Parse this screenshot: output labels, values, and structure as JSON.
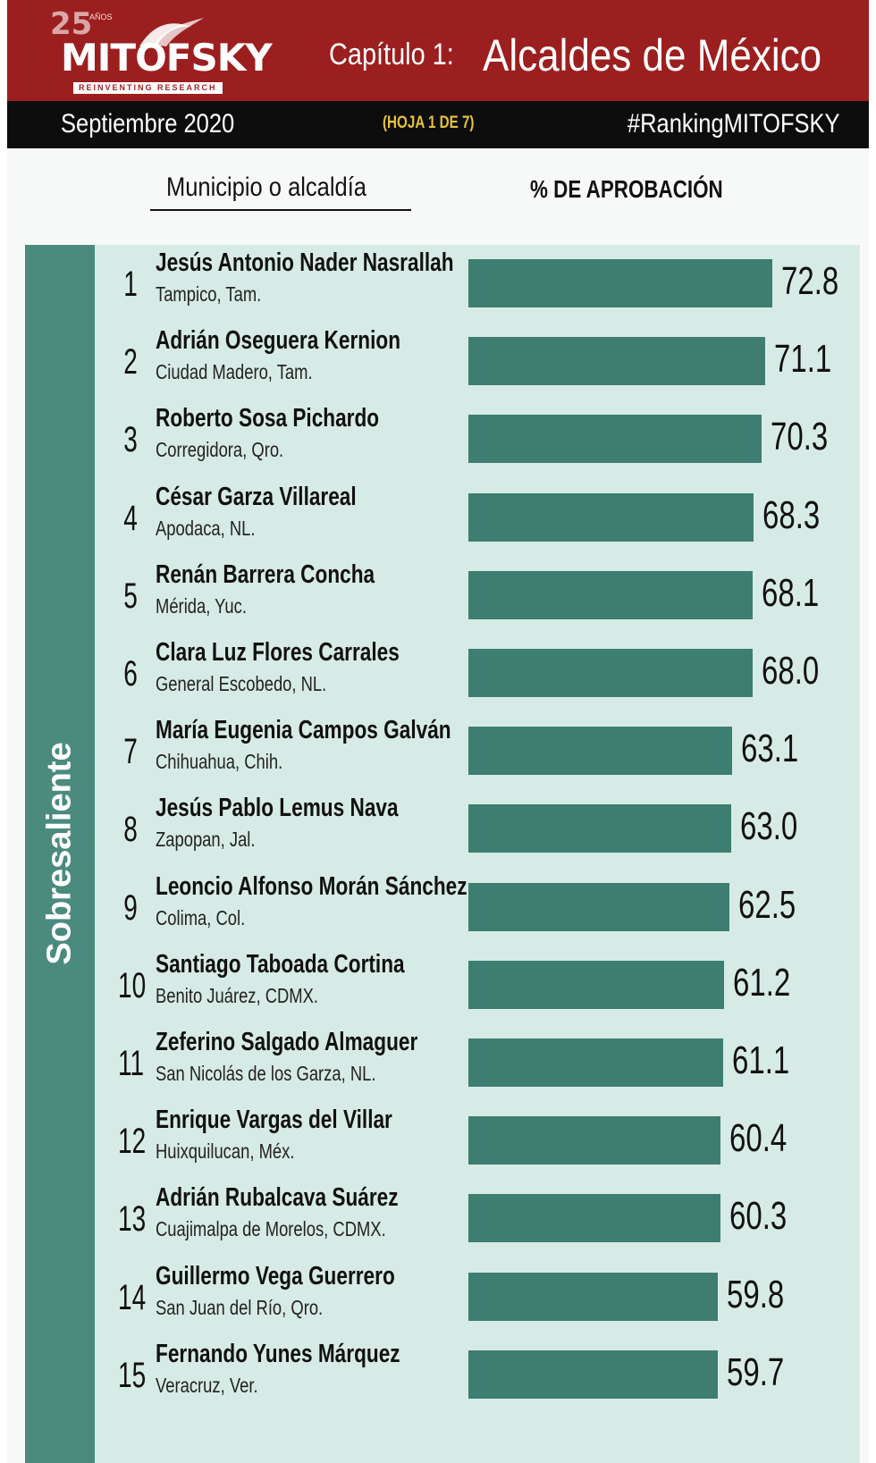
{
  "header": {
    "logo": {
      "number": "25",
      "years": "AÑOS",
      "brand": "MITOFSKY",
      "tagline": "REINVENTING RESEARCH"
    },
    "chapter_label": "Capítulo 1:",
    "chapter_title": "Alcaldes de México",
    "date": "Septiembre 2020",
    "sheet": "(HOJA 1 DE 7)",
    "hashtag": "#RankingMITOFSKY"
  },
  "columns": {
    "left": "Municipio o alcaldía",
    "right": "% DE APROBACIÓN"
  },
  "category": "Sobresaliente",
  "colors": {
    "header_red": "#9c1f1f",
    "bar": "#3d7e71",
    "band": "#4b8b7e",
    "panel": "#d7ebe6",
    "sheet_text": "#e6c33a"
  },
  "chart_data": {
    "type": "bar",
    "orientation": "horizontal",
    "title": "Alcaldes de México",
    "xlim": [
      0,
      72.8
    ],
    "items": [
      {
        "rank": "1",
        "name": "Jesús Antonio Nader Nasrallah",
        "place": "Tampico, Tam.",
        "value": 72.8,
        "label": "72.8"
      },
      {
        "rank": "2",
        "name": "Adrián Oseguera Kernion",
        "place": "Ciudad Madero, Tam.",
        "value": 71.1,
        "label": "71.1"
      },
      {
        "rank": "3",
        "name": "Roberto Sosa Pichardo",
        "place": "Corregidora, Qro.",
        "value": 70.3,
        "label": "70.3"
      },
      {
        "rank": "4",
        "name": "César Garza Villareal",
        "place": "Apodaca, NL.",
        "value": 68.3,
        "label": "68.3"
      },
      {
        "rank": "5",
        "name": "Renán Barrera Concha",
        "place": "Mérida, Yuc.",
        "value": 68.1,
        "label": "68.1"
      },
      {
        "rank": "6",
        "name": "Clara Luz Flores Carrales",
        "place": "General Escobedo, NL.",
        "value": 68.0,
        "label": "68.0"
      },
      {
        "rank": "7",
        "name": "María Eugenia Campos Galván",
        "place": "Chihuahua, Chih.",
        "value": 63.1,
        "label": "63.1"
      },
      {
        "rank": "8",
        "name": "Jesús Pablo Lemus Nava",
        "place": "Zapopan, Jal.",
        "value": 63.0,
        "label": "63.0"
      },
      {
        "rank": "9",
        "name": "Leoncio Alfonso Morán Sánchez",
        "place": "Colima, Col.",
        "value": 62.5,
        "label": "62.5"
      },
      {
        "rank": "10",
        "name": "Santiago Taboada Cortina",
        "place": "Benito Juárez, CDMX.",
        "value": 61.2,
        "label": "61.2"
      },
      {
        "rank": "11",
        "name": "Zeferino Salgado Almaguer",
        "place": "San Nicolás de los Garza, NL.",
        "value": 61.1,
        "label": "61.1"
      },
      {
        "rank": "12",
        "name": "Enrique Vargas del Villar",
        "place": "Huixquilucan, Méx.",
        "value": 60.4,
        "label": "60.4"
      },
      {
        "rank": "13",
        "name": "Adrián Rubalcava Suárez",
        "place": "Cuajimalpa de Morelos, CDMX.",
        "value": 60.3,
        "label": "60.3"
      },
      {
        "rank": "14",
        "name": "Guillermo Vega Guerrero",
        "place": "San Juan del Río, Qro.",
        "value": 59.8,
        "label": "59.8"
      },
      {
        "rank": "15",
        "name": "Fernando Yunes Márquez",
        "place": "Veracruz, Ver.",
        "value": 59.7,
        "label": "59.7"
      }
    ]
  }
}
